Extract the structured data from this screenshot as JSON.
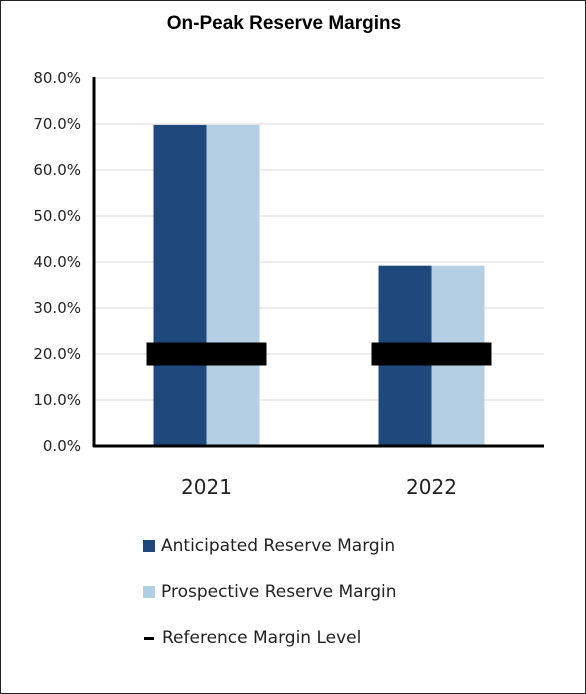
{
  "chart_data": {
    "type": "bar",
    "title": "On-Peak Reserve Margins",
    "categories": [
      "2021",
      "2022"
    ],
    "series": [
      {
        "name": "Anticipated Reserve Margin",
        "values": [
          69.8,
          39.2
        ],
        "color": "#1f497d"
      },
      {
        "name": "Prospective Reserve Margin",
        "values": [
          69.8,
          39.2
        ],
        "color": "#b4cfe4"
      }
    ],
    "reference": {
      "name": "Reference Margin Level",
      "values": [
        20.0,
        20.0
      ],
      "color": "#000000"
    },
    "ylim": [
      0,
      80
    ],
    "yticks": [
      "0.0%",
      "10.0%",
      "20.0%",
      "30.0%",
      "40.0%",
      "50.0%",
      "60.0%",
      "70.0%",
      "80.0%"
    ],
    "grid": true,
    "legend": "bottom"
  }
}
